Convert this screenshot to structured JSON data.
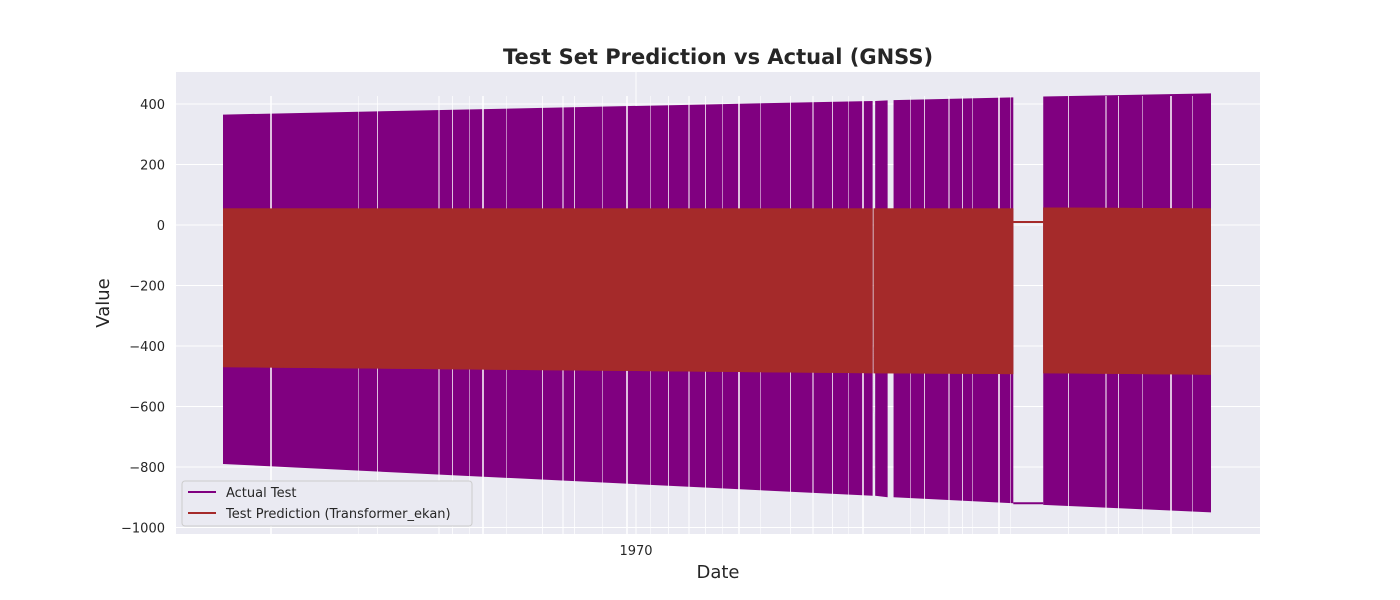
{
  "chart_data": {
    "type": "line",
    "title": "Test Set Prediction vs Actual (GNSS)",
    "xlabel": "Date",
    "ylabel": "Value",
    "x_ticks": [
      "1970"
    ],
    "y_ticks": [
      400,
      200,
      0,
      -200,
      -400,
      -600,
      -800,
      -1000
    ],
    "ylim": [
      -1015,
      500
    ],
    "grid": true,
    "legend_position": "lower-left",
    "series": [
      {
        "name": "Actual Test",
        "color": "#800080",
        "envelope": {
          "segments": [
            {
              "x": [
                0.0,
                0.6575
              ],
              "upper": [
                365,
                410
              ],
              "lower": [
                -790,
                -895
              ]
            },
            {
              "x": [
                0.6575,
                0.6601
              ],
              "upper": [
                -310,
                -870
              ],
              "lower": [
                -320,
                -885
              ]
            },
            {
              "x": [
                0.6601,
                0.6727
              ],
              "upper": [
                410,
                412
              ],
              "lower": [
                -895,
                -900
              ]
            },
            {
              "x": [
                0.6787,
                0.7999
              ],
              "upper": [
                413,
                422
              ],
              "lower": [
                -900,
                -920
              ]
            },
            {
              "x": [
                0.7999,
                0.8302
              ],
              "upper": [
                -920,
                -920
              ],
              "lower": [
                -920,
                -920
              ]
            },
            {
              "x": [
                0.8302,
                1.0
              ],
              "upper": [
                425,
                435
              ],
              "lower": [
                -925,
                -950
              ]
            }
          ]
        }
      },
      {
        "name": "Test Prediction (Transformer_ekan)",
        "color": "#a52a2a",
        "envelope": {
          "segments": [
            {
              "x": [
                0.0,
                0.6575
              ],
              "upper": [
                55,
                55
              ],
              "lower": [
                -470,
                -490
              ]
            },
            {
              "x": [
                0.6585,
                0.7999
              ],
              "upper": [
                55,
                55
              ],
              "lower": [
                -490,
                -493
              ]
            },
            {
              "x": [
                0.7999,
                0.8302
              ],
              "upper": [
                10,
                10
              ],
              "lower": [
                10,
                10
              ]
            },
            {
              "x": [
                0.8302,
                1.0
              ],
              "upper": [
                58,
                55
              ],
              "lower": [
                -490,
                -495
              ]
            }
          ]
        }
      }
    ]
  }
}
